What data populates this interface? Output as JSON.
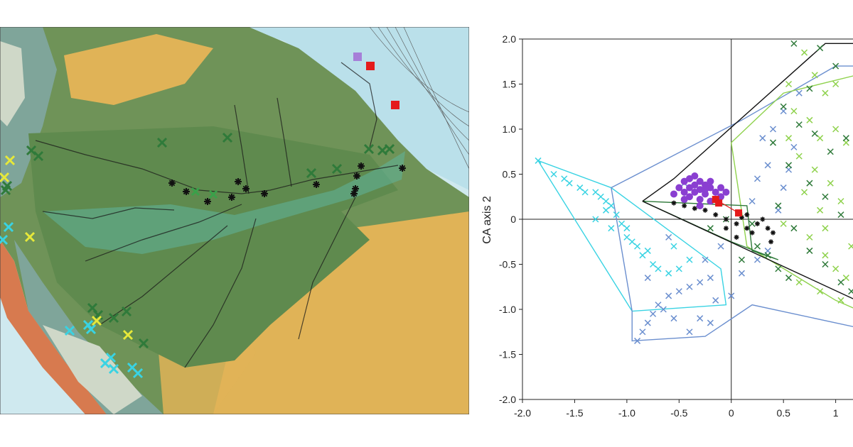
{
  "colors": {
    "ocean": "#cfe9ef",
    "ocean_shelf": "#a8dde3",
    "lowland_forest": "#6f9358",
    "river_basin_dark": "#5f8a4e",
    "savanna": "#e0b357",
    "andes_foothill": "#7fa59a",
    "andes_high": "#cfd8c8",
    "andes_coast": "#d77a4f",
    "flooded_forest": "#5fb59c",
    "plume": "#b7dfe9",
    "cyan": "#39d3e3",
    "blue": "#6b8fcf",
    "light_green": "#8fd24d",
    "dark_green": "#2f7a3a",
    "mid_green": "#3aa14a",
    "yellow": "#e6e83a",
    "black": "#111111",
    "purple": "#8a3fd1",
    "red": "#e41b1b",
    "violet_square": "#a67fd8"
  },
  "map": {
    "markers": [
      {
        "type": "square",
        "color": "violet_square"
      },
      {
        "type": "square",
        "color": "red"
      },
      {
        "type": "square",
        "color": "red"
      },
      {
        "type": "star",
        "color": "black"
      },
      {
        "type": "x",
        "color": "dark_green"
      },
      {
        "type": "x",
        "color": "cyan"
      },
      {
        "type": "x",
        "color": "yellow"
      }
    ]
  },
  "chart_data": {
    "type": "scatter",
    "xlim": [
      -2.0,
      1.2
    ],
    "ylim": [
      -2.0,
      2.0
    ],
    "xticks": [
      "-2.0",
      "-1.5",
      "-1.0",
      "-0.5",
      "0",
      "0.5",
      "1"
    ],
    "yticks": [
      "2.0",
      "1.5",
      "1.0",
      "0.5",
      "0",
      "-0.5",
      "-1.0",
      "-1.5",
      "-2.0"
    ],
    "ylabel": "CA axis 2",
    "grid": false,
    "series": [
      {
        "color": "cyan",
        "marker": "x",
        "points": [
          [
            -1.85,
            0.65
          ],
          [
            -1.7,
            0.5
          ],
          [
            -1.6,
            0.45
          ],
          [
            -1.55,
            0.4
          ],
          [
            -1.45,
            0.35
          ],
          [
            -1.4,
            0.3
          ],
          [
            -1.3,
            0.3
          ],
          [
            -1.25,
            0.25
          ],
          [
            -1.2,
            0.2
          ],
          [
            -1.15,
            0.15
          ],
          [
            -1.1,
            0.05
          ],
          [
            -1.05,
            -0.05
          ],
          [
            -1.15,
            -0.1
          ],
          [
            -1.0,
            -0.2
          ],
          [
            -0.95,
            -0.25
          ],
          [
            -0.9,
            -0.3
          ],
          [
            -0.85,
            -0.4
          ],
          [
            -0.75,
            -0.5
          ],
          [
            -0.7,
            -0.55
          ],
          [
            -0.6,
            -0.6
          ],
          [
            -0.5,
            -0.55
          ],
          [
            -1.2,
            0.1
          ],
          [
            -1.3,
            0.0
          ],
          [
            -0.8,
            -0.35
          ],
          [
            -0.55,
            -0.3
          ],
          [
            -0.4,
            -0.45
          ],
          [
            -1.0,
            -0.1
          ]
        ],
        "hull": [
          [
            -1.85,
            0.65
          ],
          [
            -1.15,
            0.35
          ],
          [
            -0.1,
            -0.55
          ],
          [
            -0.05,
            -0.95
          ],
          [
            -0.95,
            -1.02
          ],
          [
            -1.85,
            0.65
          ]
        ]
      },
      {
        "color": "blue",
        "marker": "x",
        "points": [
          [
            -0.9,
            -1.35
          ],
          [
            -0.85,
            -1.25
          ],
          [
            -0.8,
            -1.15
          ],
          [
            -0.75,
            -1.05
          ],
          [
            -0.7,
            -0.95
          ],
          [
            -0.6,
            -0.85
          ],
          [
            -0.5,
            -0.8
          ],
          [
            -0.4,
            -0.75
          ],
          [
            -0.3,
            -0.7
          ],
          [
            -0.2,
            -0.65
          ],
          [
            -0.15,
            -0.9
          ],
          [
            -0.3,
            -1.1
          ],
          [
            -0.4,
            -1.25
          ],
          [
            -0.55,
            -1.1
          ],
          [
            -0.65,
            -1.0
          ],
          [
            -0.2,
            -1.15
          ],
          [
            0.0,
            -0.85
          ],
          [
            0.1,
            -0.6
          ],
          [
            0.25,
            -0.45
          ],
          [
            0.35,
            -0.35
          ],
          [
            0.45,
            0.1
          ],
          [
            0.5,
            0.35
          ],
          [
            0.35,
            0.6
          ],
          [
            0.25,
            0.45
          ],
          [
            0.6,
            0.8
          ],
          [
            0.4,
            1.0
          ],
          [
            0.5,
            1.2
          ],
          [
            0.3,
            0.9
          ],
          [
            -0.25,
            0.3
          ],
          [
            -0.45,
            0.4
          ],
          [
            0.65,
            1.4
          ],
          [
            0.55,
            0.55
          ],
          [
            0.2,
            0.2
          ],
          [
            -0.1,
            -0.3
          ],
          [
            -0.25,
            -0.45
          ],
          [
            -0.6,
            -0.2
          ],
          [
            -0.8,
            -0.65
          ]
        ],
        "hull": [
          [
            -1.15,
            0.35
          ],
          [
            0.1,
            1.1
          ],
          [
            1.0,
            1.7
          ],
          [
            1.2,
            1.7
          ],
          [
            1.2,
            -1.2
          ],
          [
            0.2,
            -0.95
          ],
          [
            -0.25,
            -1.3
          ],
          [
            -0.95,
            -1.35
          ],
          [
            -0.95,
            -1.02
          ],
          [
            -1.15,
            0.35
          ]
        ]
      },
      {
        "color": "light_green",
        "marker": "x",
        "points": [
          [
            0.55,
            1.5
          ],
          [
            0.7,
            1.85
          ],
          [
            0.8,
            1.6
          ],
          [
            0.9,
            1.4
          ],
          [
            1.0,
            1.5
          ],
          [
            0.6,
            1.2
          ],
          [
            0.75,
            1.1
          ],
          [
            0.85,
            0.9
          ],
          [
            1.0,
            1.0
          ],
          [
            1.1,
            0.85
          ],
          [
            0.55,
            0.9
          ],
          [
            0.65,
            0.7
          ],
          [
            0.8,
            0.55
          ],
          [
            0.95,
            0.4
          ],
          [
            1.05,
            0.2
          ],
          [
            0.7,
            0.3
          ],
          [
            0.85,
            0.1
          ],
          [
            0.75,
            -0.2
          ],
          [
            0.9,
            -0.4
          ],
          [
            1.0,
            -0.55
          ],
          [
            1.1,
            -0.65
          ],
          [
            0.65,
            -0.7
          ],
          [
            0.85,
            -0.8
          ],
          [
            1.05,
            -0.9
          ],
          [
            1.15,
            -0.3
          ],
          [
            0.9,
            -0.1
          ],
          [
            0.5,
            -0.05
          ]
        ],
        "hull": [
          [
            0.0,
            0.85
          ],
          [
            0.5,
            1.4
          ],
          [
            1.2,
            1.6
          ],
          [
            1.2,
            -1.0
          ],
          [
            1.0,
            -0.9
          ],
          [
            0.15,
            -0.3
          ],
          [
            0.0,
            0.85
          ]
        ]
      },
      {
        "color": "dark_green",
        "marker": "x",
        "points": [
          [
            0.6,
            1.95
          ],
          [
            0.85,
            1.9
          ],
          [
            1.0,
            1.7
          ],
          [
            0.75,
            1.45
          ],
          [
            0.5,
            1.25
          ],
          [
            0.65,
            1.05
          ],
          [
            0.4,
            0.85
          ],
          [
            0.8,
            0.95
          ],
          [
            0.95,
            0.75
          ],
          [
            1.1,
            0.9
          ],
          [
            0.55,
            0.6
          ],
          [
            0.75,
            0.4
          ],
          [
            0.9,
            0.25
          ],
          [
            1.05,
            0.05
          ],
          [
            0.45,
            0.15
          ],
          [
            0.6,
            -0.1
          ],
          [
            0.75,
            -0.35
          ],
          [
            0.9,
            -0.5
          ],
          [
            1.05,
            -0.7
          ],
          [
            1.15,
            -0.8
          ],
          [
            0.45,
            -0.55
          ],
          [
            0.25,
            -0.3
          ],
          [
            0.1,
            -0.45
          ],
          [
            0.2,
            -0.05
          ],
          [
            0.35,
            -0.4
          ],
          [
            -0.2,
            -0.1
          ],
          [
            -0.05,
            0.0
          ],
          [
            0.55,
            -0.65
          ]
        ],
        "hull": [
          [
            -0.85,
            0.2
          ],
          [
            0.15,
            0.15
          ],
          [
            0.2,
            -0.35
          ],
          [
            0.45,
            -0.45
          ],
          [
            0.0,
            -0.25
          ],
          [
            -0.85,
            0.2
          ]
        ]
      },
      {
        "color": "black",
        "marker": "star",
        "points": [
          [
            -0.55,
            0.18
          ],
          [
            -0.45,
            0.15
          ],
          [
            -0.35,
            0.12
          ],
          [
            -0.25,
            0.1
          ],
          [
            -0.15,
            0.05
          ],
          [
            -0.05,
            0.0
          ],
          [
            0.05,
            -0.05
          ],
          [
            0.1,
            0.02
          ],
          [
            0.15,
            -0.1
          ],
          [
            0.2,
            -0.15
          ],
          [
            0.25,
            -0.05
          ],
          [
            0.3,
            0.0
          ],
          [
            0.35,
            -0.1
          ],
          [
            0.4,
            -0.15
          ],
          [
            0.05,
            -0.2
          ],
          [
            -0.05,
            -0.1
          ],
          [
            0.38,
            -0.25
          ],
          [
            0.15,
            0.05
          ]
        ],
        "hull": [
          [
            -0.85,
            0.2
          ],
          [
            -0.55,
            0.45
          ],
          [
            0.9,
            1.95
          ],
          [
            1.2,
            1.95
          ],
          [
            1.2,
            -0.9
          ],
          [
            -0.85,
            0.2
          ]
        ]
      },
      {
        "color": "purple",
        "marker": "circle",
        "points": [
          [
            -0.55,
            0.28
          ],
          [
            -0.5,
            0.35
          ],
          [
            -0.45,
            0.42
          ],
          [
            -0.4,
            0.45
          ],
          [
            -0.35,
            0.48
          ],
          [
            -0.3,
            0.42
          ],
          [
            -0.25,
            0.38
          ],
          [
            -0.2,
            0.35
          ],
          [
            -0.15,
            0.3
          ],
          [
            -0.1,
            0.25
          ],
          [
            -0.45,
            0.3
          ],
          [
            -0.4,
            0.25
          ],
          [
            -0.35,
            0.3
          ],
          [
            -0.3,
            0.22
          ],
          [
            -0.25,
            0.28
          ],
          [
            -0.2,
            0.2
          ],
          [
            -0.15,
            0.22
          ],
          [
            -0.1,
            0.35
          ],
          [
            -0.35,
            0.38
          ],
          [
            -0.3,
            0.33
          ],
          [
            -0.25,
            0.33
          ],
          [
            -0.2,
            0.42
          ],
          [
            -0.45,
            0.22
          ],
          [
            -0.4,
            0.35
          ],
          [
            -0.3,
            0.15
          ],
          [
            -0.05,
            0.3
          ]
        ]
      },
      {
        "color": "red",
        "marker": "square",
        "points": [
          [
            -0.15,
            0.22
          ],
          [
            -0.12,
            0.18
          ],
          [
            0.07,
            0.07
          ]
        ]
      }
    ]
  }
}
